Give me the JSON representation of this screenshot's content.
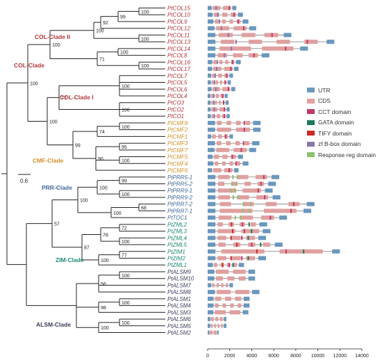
{
  "colors": {
    "COL": "#b4353a",
    "CMF": "#d4912a",
    "PRR": "#3f6796",
    "ZIM": "#1b8a73",
    "ALSM": "#3a3d5a",
    "UTR": "#6a97bd",
    "CDS": "#e0a0a0",
    "CCT": "#c2386a",
    "GATA": "#1f7a5a",
    "TIFY": "#cc2828",
    "ZFBBOX": "#8a78a8",
    "RESP": "#8cc06c"
  },
  "scale_label": "0.6",
  "axis": {
    "ticks": [
      "0",
      "2000",
      "4000",
      "6000",
      "8000",
      "10000",
      "12000",
      "14000"
    ],
    "max": 14000
  },
  "legend": [
    {
      "label": "UTR",
      "color": "#6a97bd"
    },
    {
      "label": "CDS",
      "color": "#e0a0a0"
    },
    {
      "label": "CCT domain",
      "color": "#c2386a"
    },
    {
      "label": "GATA domain",
      "color": "#1f7a5a"
    },
    {
      "label": "TIFY domain",
      "color": "#cc2828"
    },
    {
      "label": "zf B-box domain",
      "color": "#8a78a8"
    },
    {
      "label": "Response reg domain",
      "color": "#8cc06c"
    }
  ],
  "clade_labels": [
    {
      "text": "COL-Clade II",
      "group": "COL"
    },
    {
      "text": "COL-Clade",
      "group": "COL"
    },
    {
      "text": "COL-Clade I",
      "group": "COL"
    },
    {
      "text": "CMF-Clade",
      "group": "CMF"
    },
    {
      "text": "PRR-Clade",
      "group": "PRR"
    },
    {
      "text": "ZIM-Clade",
      "group": "ZIM"
    },
    {
      "text": "ALSM-Clade",
      "group": "ALSM"
    }
  ],
  "bootstrap": [
    "100",
    "99",
    "92",
    "100",
    "100",
    "100",
    "100",
    "71",
    "100",
    "100",
    "100",
    "77",
    "100",
    "74",
    "95",
    "100",
    "90",
    "99",
    "100",
    "100",
    "99",
    "100",
    "100",
    "68",
    "100",
    "100",
    "72",
    "100",
    "78",
    "77",
    "100",
    "87",
    "57",
    "100",
    "56",
    "100",
    "98",
    "100",
    "100"
  ],
  "genes": [
    {
      "name": "PtCOL15",
      "group": "COL",
      "length": 2600
    },
    {
      "name": "PtCOL10",
      "group": "COL",
      "length": 3200
    },
    {
      "name": "PtCOL9",
      "group": "COL",
      "length": 3700
    },
    {
      "name": "PtCOL12",
      "group": "COL",
      "length": 4400
    },
    {
      "name": "PtCOL11",
      "group": "COL",
      "length": 7600
    },
    {
      "name": "PtCOL13",
      "group": "COL",
      "length": 11500
    },
    {
      "name": "PtCOL14",
      "group": "COL",
      "length": 9100
    },
    {
      "name": "PtCOL8",
      "group": "COL",
      "length": 5600
    },
    {
      "name": "PtCOL16",
      "group": "COL",
      "length": 3000
    },
    {
      "name": "PtCOL17",
      "group": "COL",
      "length": 2800
    },
    {
      "name": "PtCOL7",
      "group": "COL",
      "length": 2300
    },
    {
      "name": "PtCOL5",
      "group": "COL",
      "length": 2100
    },
    {
      "name": "PtCOL6",
      "group": "COL",
      "length": 2500
    },
    {
      "name": "PtCOL4",
      "group": "COL",
      "length": 1800
    },
    {
      "name": "PtCO3",
      "group": "COL",
      "length": 1900
    },
    {
      "name": "PtCO2",
      "group": "COL",
      "length": 2000
    },
    {
      "name": "PtCO1",
      "group": "COL",
      "length": 2000
    },
    {
      "name": "PtCMF8",
      "group": "CMF",
      "length": 4800
    },
    {
      "name": "PtCMF2",
      "group": "CMF",
      "length": 4800
    },
    {
      "name": "PtCMF1",
      "group": "CMF",
      "length": 2300
    },
    {
      "name": "PtCMF3",
      "group": "CMF",
      "length": 4700
    },
    {
      "name": "PtCMF7",
      "group": "CMF",
      "length": 4400
    },
    {
      "name": "PtCMF5",
      "group": "CMF",
      "length": 3200
    },
    {
      "name": "PtCMF4",
      "group": "CMF",
      "length": 3700
    },
    {
      "name": "PtCMF6",
      "group": "CMF",
      "length": 2800
    },
    {
      "name": "PtPRR5-1",
      "group": "PRR",
      "length": 6500
    },
    {
      "name": "PtPRR5-2",
      "group": "PRR",
      "length": 6200
    },
    {
      "name": "PtPRR9-1",
      "group": "PRR",
      "length": 5900
    },
    {
      "name": "PtPRR9-2",
      "group": "PRR",
      "length": 6600
    },
    {
      "name": "PtPRR7-2",
      "group": "PRR",
      "length": 9700
    },
    {
      "name": "PtPRR7-1",
      "group": "PRR",
      "length": 9400
    },
    {
      "name": "PtTOC1",
      "group": "PRR",
      "length": 7200
    },
    {
      "name": "PtZML2",
      "group": "ZIM",
      "length": 5400
    },
    {
      "name": "PtZML3",
      "group": "ZIM",
      "length": 5700
    },
    {
      "name": "PtZML4",
      "group": "ZIM",
      "length": 5300
    },
    {
      "name": "PtZML5",
      "group": "ZIM",
      "length": 6800
    },
    {
      "name": "PtZIM1",
      "group": "ZIM",
      "length": 12000
    },
    {
      "name": "PtZIM2",
      "group": "ZIM",
      "length": 5300
    },
    {
      "name": "PtZML1",
      "group": "ZIM",
      "length": 3300
    },
    {
      "name": "PtALSM9",
      "group": "ALSM",
      "length": 4300
    },
    {
      "name": "PtALSM10",
      "group": "ALSM",
      "length": 4300
    },
    {
      "name": "PtALSM7",
      "group": "ALSM",
      "length": 2300
    },
    {
      "name": "PtALSM8",
      "group": "ALSM",
      "length": 4700
    },
    {
      "name": "PtALSM1",
      "group": "ALSM",
      "length": 3800
    },
    {
      "name": "PtALSM4",
      "group": "ALSM",
      "length": 3800
    },
    {
      "name": "PtALSM3",
      "group": "ALSM",
      "length": 3700
    },
    {
      "name": "PtALSM6",
      "group": "ALSM",
      "length": 1700
    },
    {
      "name": "PtALSM5",
      "group": "ALSM",
      "length": 1700
    },
    {
      "name": "PtALSM2",
      "group": "ALSM",
      "length": 1000
    }
  ]
}
